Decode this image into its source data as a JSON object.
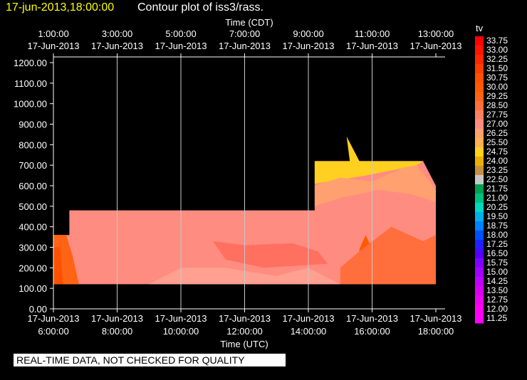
{
  "header": {
    "date_label": "17-jun-2013,18:00:00",
    "title": "Contour plot of iss3/rass."
  },
  "notice": "REAL-TIME DATA, NOT CHECKED FOR QUALITY",
  "chart_data": {
    "type": "heatmap",
    "variable": "tv",
    "top_axis": {
      "label": "Time (CDT)",
      "ticks": [
        {
          "time": "1:00:00",
          "date": "17-Jun-2013",
          "utc_hour": 6
        },
        {
          "time": "3:00:00",
          "date": "17-Jun-2013",
          "utc_hour": 8
        },
        {
          "time": "5:00:00",
          "date": "17-Jun-2013",
          "utc_hour": 10
        },
        {
          "time": "7:00:00",
          "date": "17-Jun-2013",
          "utc_hour": 12
        },
        {
          "time": "9:00:00",
          "date": "17-Jun-2013",
          "utc_hour": 14
        },
        {
          "time": "11:00:00",
          "date": "17-Jun-2013",
          "utc_hour": 16
        },
        {
          "time": "13:00:00",
          "date": "17-Jun-2013",
          "utc_hour": 18
        }
      ]
    },
    "bottom_axis": {
      "label": "Time (UTC)",
      "ticks": [
        {
          "date": "17-Jun-2013",
          "time": "6:00:00",
          "utc_hour": 6
        },
        {
          "date": "17-Jun-2013",
          "time": "8:00:00",
          "utc_hour": 8
        },
        {
          "date": "17-Jun-2013",
          "time": "10:00:00",
          "utc_hour": 10
        },
        {
          "date": "17-Jun-2013",
          "time": "12:00:00",
          "utc_hour": 12
        },
        {
          "date": "17-Jun-2013",
          "time": "14:00:00",
          "utc_hour": 14
        },
        {
          "date": "17-Jun-2013",
          "time": "16:00:00",
          "utc_hour": 16
        },
        {
          "date": "17-Jun-2013",
          "time": "18:00:00",
          "utc_hour": 18
        }
      ]
    },
    "xlim": [
      6,
      18.3
    ],
    "y_axis": {
      "ticks": [
        "0.00",
        "100.00",
        "200.00",
        "300.00",
        "400.00",
        "500.00",
        "600.00",
        "700.00",
        "800.00",
        "900.00",
        "1000.00",
        "1100.00",
        "1200.00"
      ],
      "ylim": [
        0,
        1200
      ]
    },
    "grid": true,
    "colorbar": {
      "label": "tv",
      "levels": [
        {
          "v": "33.75",
          "c": "#ff0000"
        },
        {
          "v": "33.00",
          "c": "#ff1400"
        },
        {
          "v": "32.25",
          "c": "#ff2800"
        },
        {
          "v": "31.50",
          "c": "#ff3c00"
        },
        {
          "v": "30.75",
          "c": "#ff5000"
        },
        {
          "v": "30.00",
          "c": "#ff5a00"
        },
        {
          "v": "29.25",
          "c": "#ff6414"
        },
        {
          "v": "28.50",
          "c": "#ff6e3c"
        },
        {
          "v": "27.75",
          "c": "#ff8060"
        },
        {
          "v": "27.00",
          "c": "#ff8c80"
        },
        {
          "v": "26.25",
          "c": "#ffa070"
        },
        {
          "v": "25.50",
          "c": "#ffb050"
        },
        {
          "v": "24.75",
          "c": "#ffd020"
        },
        {
          "v": "24.00",
          "c": "#e8b000"
        },
        {
          "v": "23.25",
          "c": "#c89040"
        },
        {
          "v": "22.50",
          "c": "#c8c8c8"
        },
        {
          "v": "21.75",
          "c": "#00a050"
        },
        {
          "v": "21.00",
          "c": "#00c080"
        },
        {
          "v": "20.25",
          "c": "#00d8c0"
        },
        {
          "v": "19.50",
          "c": "#00b0e8"
        },
        {
          "v": "18.75",
          "c": "#0080ff"
        },
        {
          "v": "18.00",
          "c": "#0050ff"
        },
        {
          "v": "17.25",
          "c": "#2020ff"
        },
        {
          "v": "16.50",
          "c": "#5000ff"
        },
        {
          "v": "15.75",
          "c": "#8000ff"
        },
        {
          "v": "15.00",
          "c": "#a000ff"
        },
        {
          "v": "14.25",
          "c": "#c000ff"
        },
        {
          "v": "13.50",
          "c": "#d800f0"
        },
        {
          "v": "12.75",
          "c": "#ee00f0"
        },
        {
          "v": "12.00",
          "c": "#ff00ee"
        },
        {
          "v": "11.25",
          "c": "#ff00ff"
        }
      ]
    },
    "regions": [
      {
        "name": "base-region",
        "color": "#ff8c80",
        "points": [
          [
            6,
            120
          ],
          [
            6,
            360
          ],
          [
            6.5,
            360
          ],
          [
            6.5,
            480
          ],
          [
            14.2,
            480
          ],
          [
            14.2,
            720
          ],
          [
            17.6,
            720
          ],
          [
            18,
            600
          ],
          [
            18,
            120
          ]
        ]
      },
      {
        "name": "top-bump",
        "color": "#ffd020",
        "points": [
          [
            14.2,
            720
          ],
          [
            14.2,
            610
          ],
          [
            15.8,
            650
          ],
          [
            17.4,
            700
          ],
          [
            17.6,
            720
          ],
          [
            15.6,
            720
          ],
          [
            15.2,
            840
          ],
          [
            15.3,
            720
          ]
        ]
      },
      {
        "name": "upper-tan",
        "color": "#ffa070",
        "points": [
          [
            14.2,
            600
          ],
          [
            15,
            640
          ],
          [
            16,
            620
          ],
          [
            17,
            690
          ],
          [
            17.4,
            700
          ],
          [
            17.6,
            660
          ],
          [
            18,
            580
          ],
          [
            18,
            520
          ],
          [
            17.2,
            560
          ],
          [
            16.2,
            580
          ],
          [
            15,
            540
          ],
          [
            14.2,
            500
          ]
        ]
      },
      {
        "name": "left-band",
        "color": "#ff6414",
        "points": [
          [
            6,
            120
          ],
          [
            6,
            360
          ],
          [
            6.4,
            360
          ],
          [
            6.6,
            260
          ],
          [
            6.8,
            120
          ]
        ]
      },
      {
        "name": "left-edge-dark",
        "color": "#ff5000",
        "points": [
          [
            6,
            120
          ],
          [
            6,
            300
          ],
          [
            6.2,
            300
          ],
          [
            6.3,
            120
          ]
        ]
      },
      {
        "name": "middle-warm",
        "color": "#ff7060",
        "points": [
          [
            11,
            330
          ],
          [
            12,
            310
          ],
          [
            13.5,
            320
          ],
          [
            14.3,
            280
          ],
          [
            14.6,
            220
          ],
          [
            12.6,
            200
          ],
          [
            11.4,
            240
          ]
        ]
      },
      {
        "name": "right-dark",
        "color": "#ff5a00",
        "points": [
          [
            15.6,
            120
          ],
          [
            15.6,
            290
          ],
          [
            15.8,
            360
          ],
          [
            16.2,
            220
          ],
          [
            16.6,
            340
          ],
          [
            17,
            260
          ],
          [
            17.5,
            230
          ],
          [
            18,
            280
          ],
          [
            18,
            120
          ]
        ]
      },
      {
        "name": "right-mid",
        "color": "#ff6e3c",
        "points": [
          [
            15,
            120
          ],
          [
            15,
            200
          ],
          [
            15.6,
            280
          ],
          [
            16.6,
            400
          ],
          [
            17.6,
            330
          ],
          [
            18,
            360
          ],
          [
            18,
            120
          ]
        ]
      },
      {
        "name": "bottom-light",
        "color": "#ffa090",
        "points": [
          [
            9,
            120
          ],
          [
            10,
            200
          ],
          [
            11.4,
            200
          ],
          [
            13,
            160
          ],
          [
            14,
            200
          ],
          [
            15,
            120
          ]
        ]
      }
    ]
  }
}
